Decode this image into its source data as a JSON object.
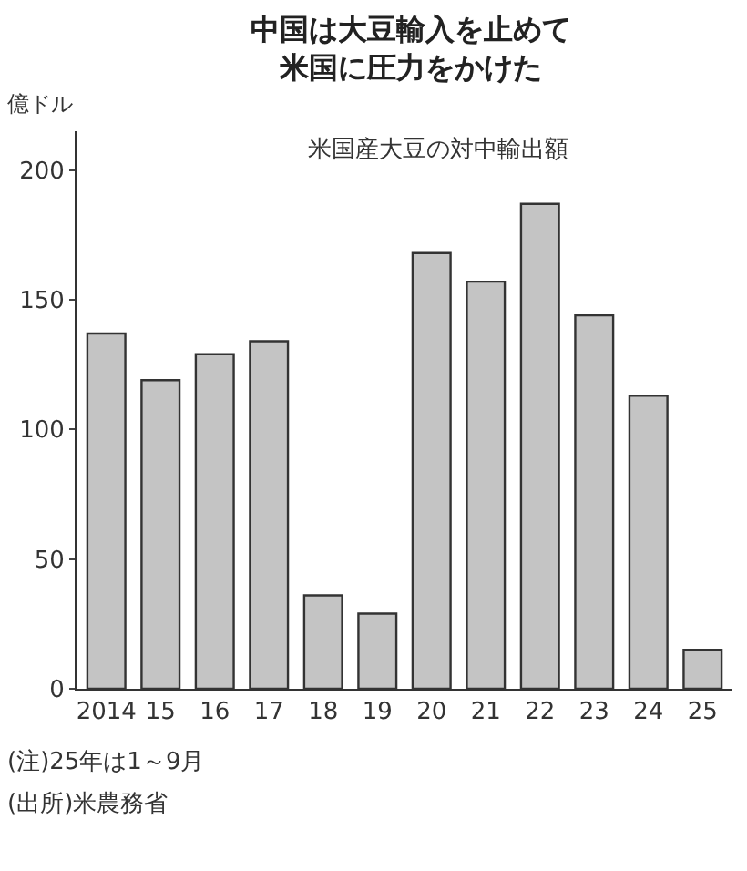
{
  "chart_data": {
    "type": "bar",
    "title": "中国は大豆輸入を止めて米国に圧力をかけた",
    "subtitle": "米国産大豆の対中輸出額",
    "ylabel": "億ドル",
    "categories": [
      "2014",
      "15",
      "16",
      "17",
      "18",
      "19",
      "20",
      "21",
      "22",
      "23",
      "24",
      "25"
    ],
    "values": [
      137,
      119,
      129,
      134,
      36,
      29,
      168,
      157,
      187,
      144,
      113,
      15
    ],
    "color": "#c4c4c4",
    "ylim": [
      0,
      215
    ],
    "yticks": [
      0,
      50,
      100,
      150,
      200
    ],
    "annotations": [
      "(注)25年は1～9月",
      "(出所)米農務省"
    ]
  }
}
